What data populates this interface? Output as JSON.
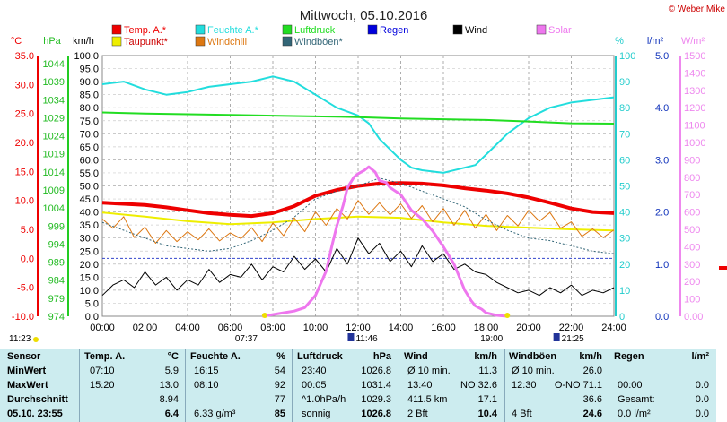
{
  "header": {
    "title": "Mittwoch, 05.10.2016",
    "credit": "© Weber Mike"
  },
  "legend": [
    {
      "label": "Temp. A.*",
      "color": "#ee0000"
    },
    {
      "label": "Feuchte A.*",
      "color": "#22dddd"
    },
    {
      "label": "Luftdruck",
      "color": "#22dd22"
    },
    {
      "label": "Regen",
      "color": "#0000dd"
    },
    {
      "label": "Wind",
      "color": "#000000"
    },
    {
      "label": "Solar",
      "color": "#ee77ee"
    },
    {
      "label": "Taupunkt*",
      "color": "#eeee00"
    },
    {
      "label": "Windchill",
      "color": "#dd7711"
    },
    {
      "label": "Windböen*",
      "color": "#336677"
    }
  ],
  "axis_units": {
    "c": "°C",
    "hpa": "hPa",
    "kmh": "km/h",
    "pct": "%",
    "lm2": "l/m²",
    "wm2": "W/m²"
  },
  "sun": {
    "rise": "07:37",
    "set": "19:00"
  },
  "moon": {
    "rise": "11:46",
    "set": "21:25"
  },
  "corner_time": "11:23",
  "chart_data": {
    "type": "line",
    "x_ticks": [
      "00:00",
      "02:00",
      "04:00",
      "06:00",
      "08:00",
      "10:00",
      "12:00",
      "14:00",
      "16:00",
      "18:00",
      "20:00",
      "22:00",
      "24:00"
    ],
    "axes": {
      "temp_c": {
        "range": [
          -10,
          35
        ],
        "ticks": [
          "35.0",
          "30.0",
          "25.0",
          "20.0",
          "15.0",
          "10.0",
          "5.0",
          "0.0",
          "-5.0",
          "-10.0"
        ],
        "color": "#ee0000"
      },
      "pressure_hpa": {
        "range": [
          974,
          1046
        ],
        "ticks": [
          "1044",
          "1039",
          "1034",
          "1029",
          "1024",
          "1019",
          "1014",
          "1009",
          "1004",
          "999",
          "994",
          "989",
          "984",
          "979",
          "974"
        ],
        "color": "#22bb22"
      },
      "wind_kmh": {
        "range": [
          0,
          100
        ],
        "ticks": [
          "100.0",
          "95.0",
          "90.0",
          "85.0",
          "80.0",
          "75.0",
          "70.0",
          "65.0",
          "60.0",
          "55.0",
          "50.0",
          "45.0",
          "40.0",
          "35.0",
          "30.0",
          "25.0",
          "20.0",
          "15.0",
          "10.0",
          "5.0",
          "0.0"
        ],
        "color": "#000000"
      },
      "humidity_pct": {
        "range": [
          0,
          100
        ],
        "ticks": [
          "100",
          "90",
          "80",
          "70",
          "60",
          "50",
          "40",
          "30",
          "20",
          "10",
          "0"
        ],
        "color": "#22cccc"
      },
      "rain_lm2": {
        "range": [
          0,
          5
        ],
        "ticks": [
          "5.0",
          "4.0",
          "3.0",
          "2.0",
          "1.0",
          "0.0"
        ],
        "color": "#1133bb"
      },
      "solar_wm2": {
        "range": [
          0,
          1500
        ],
        "ticks": [
          "1500",
          "1400",
          "1300",
          "1200",
          "1100",
          "1000",
          "900",
          "800",
          "700",
          "600",
          "500",
          "400",
          "300",
          "200",
          "100",
          "0.00"
        ],
        "color": "#ee88ee"
      }
    },
    "series": [
      {
        "name": "Feuchte A.*",
        "axis": "humidity_pct",
        "x": [
          0,
          1,
          2,
          3,
          4,
          5,
          6,
          7,
          8,
          9,
          10,
          11,
          12,
          12.5,
          13,
          13.5,
          14,
          14.5,
          15,
          16,
          17,
          17.5,
          18,
          19,
          20,
          21,
          22,
          23,
          24
        ],
        "y": [
          89,
          90,
          87,
          85,
          86,
          88,
          89,
          90,
          92,
          90,
          85,
          80,
          77,
          74,
          68,
          64,
          60,
          57,
          56,
          55,
          57,
          58,
          62,
          70,
          76,
          80,
          82,
          83,
          84
        ]
      },
      {
        "name": "Luftdruck",
        "axis": "pressure_hpa",
        "x": [
          0,
          2,
          4,
          6,
          8,
          10,
          12,
          14,
          16,
          18,
          20,
          22,
          24
        ],
        "y": [
          1030.3,
          1030.0,
          1029.8,
          1029.6,
          1029.4,
          1029.2,
          1029.0,
          1028.6,
          1028.4,
          1028.2,
          1027.8,
          1027.3,
          1027.2
        ]
      },
      {
        "name": "Temp. A.*",
        "axis": "temp_c",
        "x": [
          0,
          1,
          2,
          3,
          4,
          5,
          6,
          7,
          8,
          9,
          10,
          11,
          12,
          13,
          14,
          15,
          16,
          17,
          18,
          19,
          20,
          21,
          22,
          23,
          24
        ],
        "y": [
          9.6,
          9.4,
          9.2,
          8.8,
          8.3,
          7.8,
          7.5,
          7.3,
          7.8,
          9.0,
          10.8,
          11.8,
          12.5,
          12.9,
          13.0,
          12.9,
          12.6,
          12.1,
          11.7,
          11.2,
          10.5,
          9.6,
          8.6,
          8.0,
          7.8
        ]
      },
      {
        "name": "Taupunkt*",
        "axis": "temp_c",
        "x": [
          0,
          2,
          4,
          6,
          8,
          10,
          12,
          14,
          16,
          18,
          20,
          22,
          24
        ],
        "y": [
          7.9,
          7.2,
          6.4,
          5.9,
          6.2,
          6.8,
          7.2,
          7.0,
          6.2,
          5.6,
          5.3,
          5.0,
          4.8
        ]
      },
      {
        "name": "Windchill",
        "axis": "temp_c",
        "x": [
          0,
          0.5,
          1,
          1.5,
          2,
          2.5,
          3,
          3.5,
          4,
          4.5,
          5,
          5.5,
          6,
          6.5,
          7,
          7.5,
          8,
          8.5,
          9,
          9.5,
          10,
          10.5,
          11,
          11.5,
          12,
          12.5,
          13,
          13.5,
          14,
          14.5,
          15,
          15.5,
          16,
          16.5,
          17,
          17.5,
          18,
          18.5,
          19,
          19.5,
          20,
          20.5,
          21,
          21.5,
          22,
          22.5,
          23,
          23.5,
          24
        ],
        "y": [
          6.8,
          5.2,
          7.2,
          3.6,
          5.4,
          2.6,
          4.8,
          2.9,
          4.6,
          3.2,
          5.1,
          3.0,
          4.4,
          3.4,
          5.3,
          2.9,
          6.1,
          3.9,
          7.0,
          4.6,
          8.0,
          5.7,
          8.6,
          6.8,
          10.0,
          7.6,
          9.6,
          7.5,
          9.4,
          6.9,
          9.1,
          6.3,
          8.6,
          5.7,
          8.3,
          5.2,
          7.6,
          4.8,
          7.4,
          5.6,
          8.3,
          6.4,
          7.9,
          5.2,
          6.3,
          3.8,
          5.1,
          3.6,
          4.9
        ]
      },
      {
        "name": "Windböen*",
        "axis": "wind_kmh",
        "x": [
          0,
          1,
          2,
          3,
          4,
          5,
          6,
          7,
          8,
          9,
          10,
          11,
          12,
          13,
          14,
          15,
          16,
          17,
          18,
          19,
          20,
          21,
          22,
          23,
          24
        ],
        "y": [
          36,
          33,
          30,
          27,
          26,
          25,
          26,
          29,
          33,
          38,
          45,
          48,
          50,
          53,
          51,
          48,
          45,
          42,
          37,
          33,
          30,
          29,
          27,
          25,
          24
        ]
      },
      {
        "name": "Wind",
        "axis": "wind_kmh",
        "x": [
          0,
          0.5,
          1,
          1.5,
          2,
          2.5,
          3,
          3.5,
          4,
          4.5,
          5,
          5.5,
          6,
          6.5,
          7,
          7.5,
          8,
          8.5,
          9,
          9.5,
          10,
          10.5,
          11,
          11.5,
          12,
          12.5,
          13,
          13.5,
          14,
          14.5,
          15,
          15.5,
          16,
          16.5,
          17,
          17.5,
          18,
          18.5,
          19,
          19.5,
          20,
          20.5,
          21,
          21.5,
          22,
          22.5,
          23,
          23.5,
          24
        ],
        "y": [
          8,
          12,
          14,
          11,
          17,
          12,
          15,
          10,
          14,
          12,
          18,
          13,
          16,
          15,
          20,
          14,
          19,
          17,
          23,
          18,
          22,
          17,
          26,
          20,
          30,
          24,
          28,
          21,
          25,
          19,
          27,
          21,
          24,
          18,
          20,
          17,
          16,
          13,
          11,
          9,
          10,
          8,
          11,
          9,
          12,
          8,
          10,
          9,
          11
        ]
      },
      {
        "name": "Solar",
        "axis": "solar_wm2",
        "x": [
          7.5,
          8,
          8.5,
          9,
          9.5,
          10,
          10.5,
          10.8,
          11,
          11.3,
          11.5,
          11.8,
          12,
          12.3,
          12.5,
          12.8,
          13,
          13.3,
          13.5,
          14,
          14.5,
          15,
          15.5,
          16,
          16.5,
          17,
          17.3,
          17.5,
          17.8,
          18,
          18.5,
          19
        ],
        "y": [
          0,
          10,
          20,
          30,
          50,
          120,
          260,
          420,
          520,
          640,
          740,
          800,
          820,
          840,
          860,
          830,
          780,
          770,
          740,
          700,
          610,
          560,
          490,
          400,
          300,
          150,
          90,
          60,
          40,
          20,
          5,
          0
        ]
      }
    ]
  },
  "table": {
    "headers": {
      "sensor": "Sensor",
      "temp": "Temp. A.",
      "temp_u": "°C",
      "hum": "Feuchte A.",
      "hum_u": "%",
      "press": "Luftdruck",
      "press_u": "hPa",
      "wind": "Wind",
      "wind_u": "km/h",
      "gust": "Windböen",
      "gust_u": "km/h",
      "rain": "Regen",
      "rain_u": "l/m²"
    },
    "rows": [
      {
        "label": "MinWert",
        "t_time": "07:10",
        "t_val": "5.9",
        "h_time": "16:15",
        "h_val": "54",
        "p_time": "23:40",
        "p_val": "1026.8",
        "w_time": "Ø 10 min.",
        "w_val": "11.3",
        "g_time": "Ø 10 min.",
        "g_val": "26.0",
        "r_time": "",
        "r_val": ""
      },
      {
        "label": "MaxWert",
        "t_time": "15:20",
        "t_val": "13.0",
        "h_time": "08:10",
        "h_val": "92",
        "p_time": "00:05",
        "p_val": "1031.4",
        "w_time": "13:40",
        "w_val": "NO 32.6",
        "g_time": "12:30",
        "g_val": "O-NO 71.1",
        "r_time": "00:00",
        "r_val": "0.0"
      },
      {
        "label": "Durchschnitt",
        "t_time": "",
        "t_val": "8.94",
        "h_time": "",
        "h_val": "77",
        "p_time": "^1.0hPa/h",
        "p_val": "1029.3",
        "w_time": "411.5 km",
        "w_val": "17.1",
        "g_time": "",
        "g_val": "36.6",
        "r_time": "Gesamt:",
        "r_val": "0.0"
      },
      {
        "label": "05.10. 23:55",
        "t_time": "",
        "t_val": "6.4",
        "h_time": "6.33 g/m³",
        "h_val": "85",
        "p_time": "sonnig",
        "p_val": "1026.8",
        "w_time": "2 Bft",
        "w_val": "10.4",
        "g_time": "4 Bft",
        "g_val": "24.6",
        "r_time": "0.0 l/m²",
        "r_val": "0.0"
      }
    ]
  }
}
